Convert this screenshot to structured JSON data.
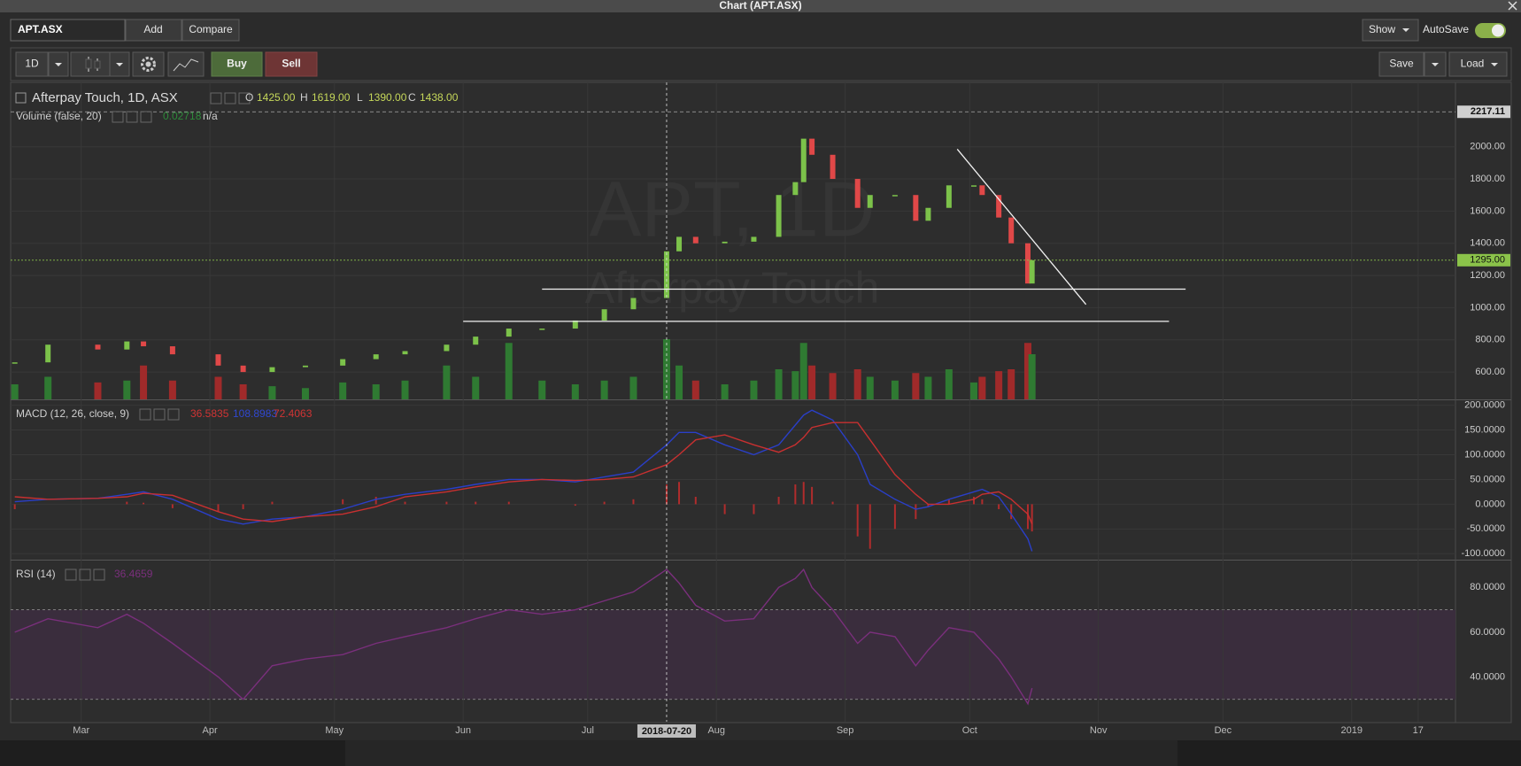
{
  "window": {
    "title": "Chart (APT.ASX)"
  },
  "toolbar": {
    "symbol": "APT.ASX",
    "add": "Add",
    "compare": "Compare",
    "show": "Show",
    "autosave": "AutoSave",
    "interval": "1D",
    "buy": "Buy",
    "sell": "Sell",
    "save": "Save",
    "load": "Load"
  },
  "chart_data": {
    "type": "candlestick",
    "title": "Afterpay Touch, 1D, ASX",
    "watermark": [
      "APT, 1D",
      "Afterpay Touch"
    ],
    "ohlc_legend": [
      {
        "name": "O",
        "value": 1425,
        "label": "1425.00"
      },
      {
        "name": "H",
        "value": 1619,
        "label": "1619.00"
      },
      {
        "name": "L",
        "value": 1390,
        "label": "1390.00"
      },
      {
        "name": "C",
        "value": 1438,
        "label": "1438.00"
      }
    ],
    "x": [
      "2018-02-13",
      "2018-02-21",
      "2018-03-05",
      "2018-03-12",
      "2018-03-16",
      "2018-03-23",
      "2018-04-03",
      "2018-04-09",
      "2018-04-16",
      "2018-04-24",
      "2018-05-03",
      "2018-05-11",
      "2018-05-18",
      "2018-05-28",
      "2018-06-04",
      "2018-06-12",
      "2018-06-20",
      "2018-06-28",
      "2018-07-05",
      "2018-07-12",
      "2018-07-20",
      "2018-07-23",
      "2018-07-27",
      "2018-08-03",
      "2018-08-10",
      "2018-08-16",
      "2018-08-20",
      "2018-08-22",
      "2018-08-24",
      "2018-08-29",
      "2018-09-04",
      "2018-09-07",
      "2018-09-13",
      "2018-09-18",
      "2018-09-21",
      "2018-09-26",
      "2018-10-02",
      "2018-10-04",
      "2018-10-08",
      "2018-10-11",
      "2018-10-15",
      "2018-10-16"
    ],
    "close": [
      660,
      770,
      740,
      790,
      760,
      710,
      640,
      600,
      630,
      640,
      680,
      710,
      730,
      770,
      820,
      870,
      870,
      920,
      990,
      1060,
      1350,
      1440,
      1400,
      1410,
      1440,
      1700,
      1780,
      2050,
      1950,
      1800,
      1620,
      1700,
      1700,
      1540,
      1620,
      1760,
      1760,
      1700,
      1560,
      1400,
      1150,
      1295
    ],
    "volume": [
      0.8,
      1.2,
      0.9,
      1.0,
      1.8,
      1.0,
      1.2,
      0.8,
      0.7,
      0.6,
      0.9,
      0.8,
      1.0,
      1.8,
      1.2,
      3.0,
      1.0,
      0.8,
      1.0,
      1.2,
      3.2,
      1.8,
      1.0,
      0.8,
      1.0,
      1.6,
      1.5,
      3.0,
      1.8,
      1.4,
      1.6,
      1.2,
      1.0,
      1.4,
      1.2,
      1.6,
      0.9,
      1.2,
      1.5,
      1.6,
      3.0,
      2.4
    ],
    "up_color": "#7cc24a",
    "down_color": "#e04848",
    "volume_up_color": "#2f7a32",
    "volume_down_color": "#a02a2a",
    "volume_legend": {
      "title": "Volume (false, 20)",
      "values": [
        "0.02718",
        "n/a"
      ]
    },
    "xlim": [
      "2018-02-12",
      "2019-01-26"
    ],
    "xticks": [
      {
        "value": "2018-03-01",
        "label": "Mar"
      },
      {
        "value": "2018-04-01",
        "label": "Apr"
      },
      {
        "value": "2018-05-01",
        "label": "May"
      },
      {
        "value": "2018-06-01",
        "label": "Jun"
      },
      {
        "value": "2018-07-01",
        "label": "Jul"
      },
      {
        "value": "2018-08-01",
        "label": "Aug"
      },
      {
        "value": "2018-09-01",
        "label": "Sep"
      },
      {
        "value": "2018-10-01",
        "label": "Oct"
      },
      {
        "value": "2018-11-01",
        "label": "Nov"
      },
      {
        "value": "2018-12-01",
        "label": "Dec"
      },
      {
        "value": "2019-01-01",
        "label": "2019"
      },
      {
        "value": "2019-01-17",
        "label": "17"
      }
    ],
    "crosshair": "2018-07-20",
    "ylim": [
      430,
      2400
    ],
    "yticks": [
      {
        "value": 600,
        "label": "600.00"
      },
      {
        "value": 800,
        "label": "800.00"
      },
      {
        "value": 1000,
        "label": "1000.00"
      },
      {
        "value": 1200,
        "label": "1200.00"
      },
      {
        "value": 1400,
        "label": "1400.00"
      },
      {
        "value": 1600,
        "label": "1600.00"
      },
      {
        "value": 1800,
        "label": "1800.00"
      },
      {
        "value": 2000,
        "label": "2000.00"
      }
    ],
    "high_marker": {
      "value": 2217.11,
      "label": "2217.11"
    },
    "last_marker": {
      "value": 1295,
      "label": "1295.00",
      "color": "#8bc34a"
    },
    "trendlines": [
      {
        "x": [
          "2018-06-20",
          "2018-11-22"
        ],
        "y": [
          1115,
          1115
        ]
      },
      {
        "x": [
          "2018-06-01",
          "2018-11-18"
        ],
        "y": [
          915,
          915
        ]
      },
      {
        "x": [
          "2018-09-28",
          "2018-10-29"
        ],
        "y": [
          1985,
          1020
        ]
      }
    ],
    "macd": {
      "title": "MACD (12, 26, close, 9)",
      "readings": [
        {
          "value": 36.5835,
          "color": "#d03434"
        },
        {
          "value": 108.8983,
          "color": "#3048d0"
        },
        {
          "value": 72.4063,
          "color": "#d03434"
        }
      ],
      "lines": [
        {
          "color": "#2a3fc8",
          "values": [
            5,
            10,
            12,
            20,
            25,
            10,
            -30,
            -40,
            -30,
            -25,
            -10,
            10,
            20,
            30,
            40,
            50,
            50,
            45,
            55,
            65,
            120,
            145,
            145,
            120,
            100,
            120,
            160,
            180,
            190,
            170,
            100,
            40,
            10,
            -10,
            -5,
            10,
            25,
            30,
            15,
            -20,
            -70,
            -95
          ]
        },
        {
          "color": "#c83030",
          "values": [
            15,
            10,
            12,
            15,
            22,
            18,
            -15,
            -30,
            -35,
            -25,
            -20,
            -5,
            15,
            25,
            35,
            45,
            50,
            48,
            50,
            55,
            80,
            100,
            130,
            140,
            120,
            105,
            120,
            135,
            155,
            165,
            165,
            130,
            60,
            20,
            0,
            0,
            10,
            20,
            25,
            10,
            -20,
            -40
          ]
        }
      ],
      "histogram_color": "#b02c2c",
      "ylim": [
        -112,
        210
      ],
      "yticks": [
        {
          "value": -100,
          "label": "-100.0000"
        },
        {
          "value": -50,
          "label": "-50.0000"
        },
        {
          "value": 0,
          "label": "0.0000"
        },
        {
          "value": 50,
          "label": "50.0000"
        },
        {
          "value": 100,
          "label": "100.0000"
        },
        {
          "value": 150,
          "label": "150.0000"
        },
        {
          "value": 200,
          "label": "200.0000"
        }
      ]
    },
    "rsi": {
      "title": "RSI (14)",
      "reading": 36.4659,
      "color": "#7a2f7c",
      "values": [
        60,
        66,
        62,
        68,
        64,
        55,
        40,
        30,
        45,
        48,
        50,
        55,
        58,
        62,
        66,
        70,
        68,
        70,
        74,
        78,
        88,
        82,
        72,
        65,
        66,
        80,
        84,
        88,
        80,
        70,
        55,
        60,
        58,
        45,
        52,
        62,
        60,
        56,
        48,
        40,
        28,
        35
      ],
      "bands": [
        30,
        70
      ],
      "ylim": [
        20,
        92
      ],
      "yticks": [
        {
          "value": 40,
          "label": "40.0000"
        },
        {
          "value": 60,
          "label": "60.0000"
        },
        {
          "value": 80,
          "label": "80.0000"
        }
      ]
    }
  }
}
